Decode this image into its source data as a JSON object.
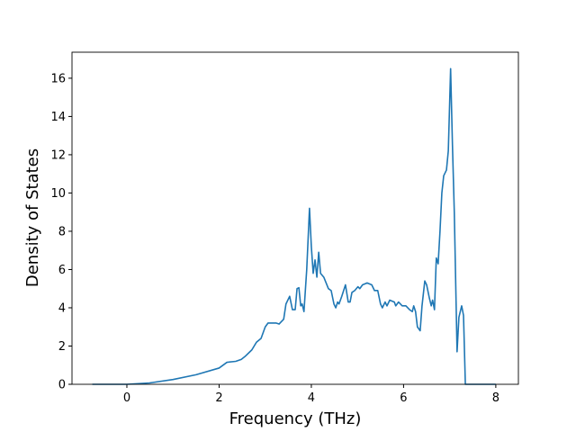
{
  "chart_data": {
    "type": "line",
    "xlabel": "Frequency (THz)",
    "ylabel": "Density of States",
    "color": "#1f77b4",
    "x": [
      -0.75,
      0,
      0.49,
      1.0,
      1.5,
      2.0,
      2.17,
      2.36,
      2.48,
      2.56,
      2.71,
      2.81,
      2.91,
      3.0,
      3.06,
      3.24,
      3.3,
      3.4,
      3.45,
      3.53,
      3.59,
      3.65,
      3.69,
      3.73,
      3.77,
      3.8,
      3.84,
      3.9,
      3.96,
      4.0,
      4.04,
      4.08,
      4.12,
      4.16,
      4.2,
      4.27,
      4.37,
      4.43,
      4.49,
      4.53,
      4.57,
      4.6,
      4.66,
      4.74,
      4.8,
      4.84,
      4.88,
      4.94,
      5.01,
      5.05,
      5.11,
      5.21,
      5.31,
      5.37,
      5.44,
      5.5,
      5.54,
      5.6,
      5.64,
      5.7,
      5.8,
      5.83,
      5.89,
      5.97,
      6.05,
      6.13,
      6.19,
      6.22,
      6.26,
      6.3,
      6.36,
      6.4,
      6.46,
      6.5,
      6.56,
      6.6,
      6.63,
      6.67,
      6.71,
      6.75,
      6.79,
      6.83,
      6.87,
      6.93,
      6.97,
      7.02,
      7.06,
      7.1,
      7.16,
      7.2,
      7.26,
      7.3,
      7.34,
      8.0
    ],
    "values": [
      0,
      0,
      0.07,
      0.25,
      0.5,
      0.85,
      1.15,
      1.2,
      1.3,
      1.45,
      1.8,
      2.2,
      2.4,
      3.0,
      3.2,
      3.2,
      3.15,
      3.4,
      4.2,
      4.6,
      3.9,
      3.9,
      5.0,
      5.05,
      4.1,
      4.2,
      3.8,
      6.0,
      9.2,
      7.2,
      5.8,
      6.5,
      5.6,
      6.9,
      5.8,
      5.6,
      5.0,
      4.9,
      4.2,
      4.0,
      4.3,
      4.2,
      4.6,
      5.2,
      4.3,
      4.3,
      4.8,
      4.9,
      5.1,
      5.0,
      5.2,
      5.3,
      5.2,
      4.9,
      4.9,
      4.2,
      4.0,
      4.3,
      4.1,
      4.4,
      4.3,
      4.1,
      4.3,
      4.1,
      4.1,
      3.9,
      3.8,
      4.1,
      3.8,
      3.0,
      2.8,
      4.1,
      5.4,
      5.2,
      4.5,
      4.1,
      4.4,
      3.9,
      6.6,
      6.3,
      8.0,
      10.0,
      10.9,
      11.2,
      12.2,
      16.5,
      12.5,
      9.0,
      1.7,
      3.5,
      4.1,
      3.6,
      0,
      0
    ],
    "xlim": [
      -1.19,
      8.49
    ],
    "xticks": [
      0,
      2,
      4,
      6,
      8
    ],
    "ylim": [
      0,
      17.36
    ],
    "yticks": [
      0,
      2,
      4,
      6,
      8,
      10,
      12,
      14,
      16
    ],
    "grid": false
  }
}
